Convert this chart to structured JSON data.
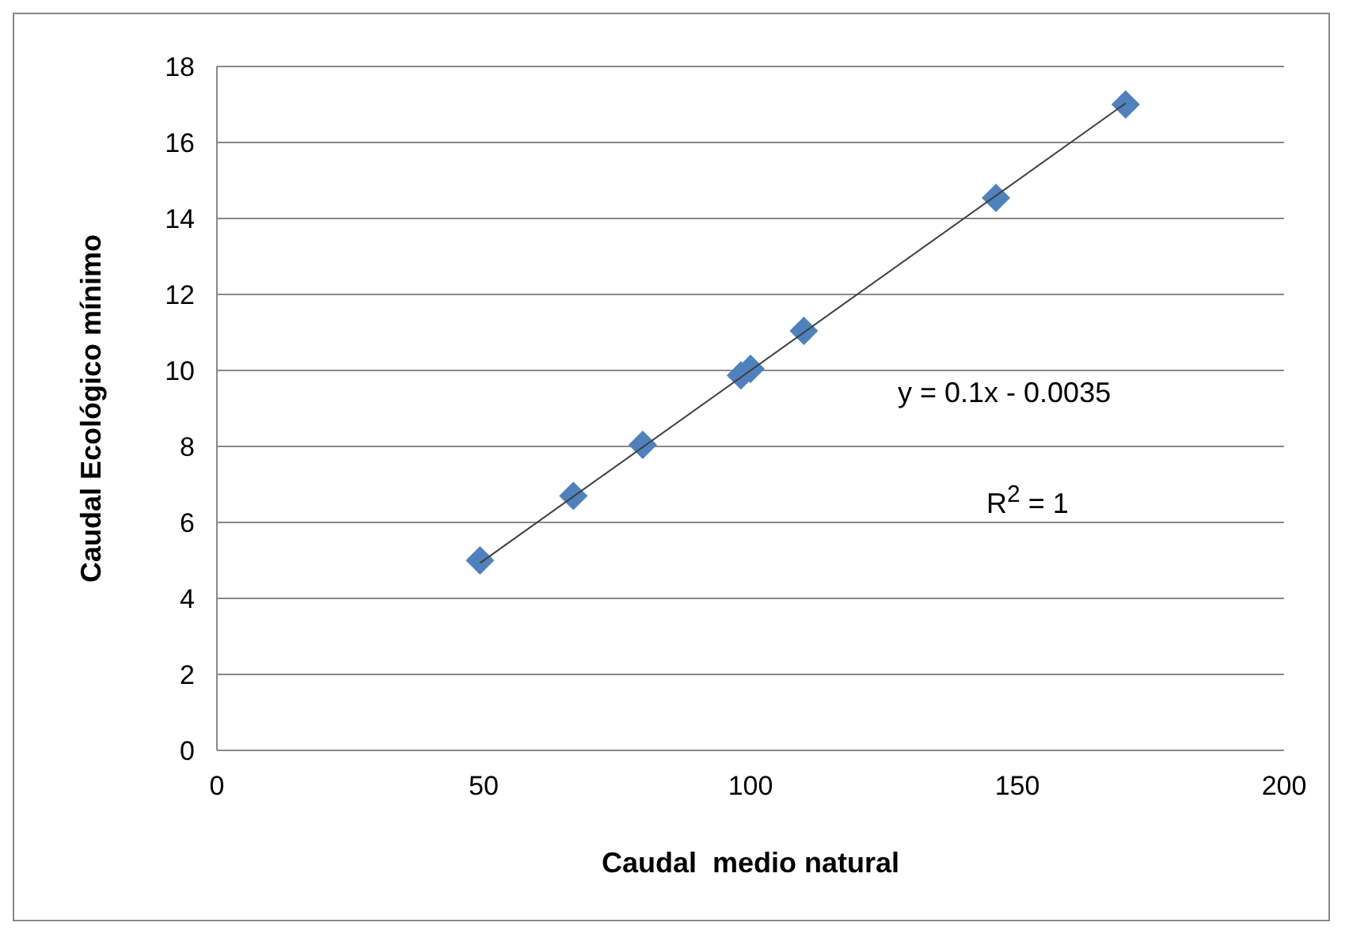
{
  "chart_data": {
    "type": "scatter",
    "xlabel": "Caudal  medio natural",
    "ylabel": "Caudal Ecológico mínimo",
    "xlim": [
      0,
      200
    ],
    "xticks": [
      0,
      50,
      100,
      150,
      200
    ],
    "ylim": [
      0,
      18
    ],
    "yticks": [
      0,
      2,
      4,
      6,
      8,
      10,
      12,
      14,
      16,
      18
    ],
    "grid": "y",
    "legend": false,
    "marker": "diamond",
    "series": [
      {
        "color": "#4f81bd",
        "x": [
          49.3,
          66.8,
          79.8,
          98.2,
          100,
          110,
          146,
          170.3
        ],
        "values": [
          5.0,
          6.7,
          8.04,
          9.87,
          10.04,
          11.04,
          14.54,
          17.0
        ]
      },
      {
        "type": "line",
        "color": "#404040",
        "marker": "none",
        "x": [
          49.3,
          170.3
        ],
        "values": [
          4.93,
          17.03
        ]
      }
    ],
    "annotations": [
      "y = 0.1x - 0.0035",
      "R$^{2}$ = 1"
    ]
  }
}
